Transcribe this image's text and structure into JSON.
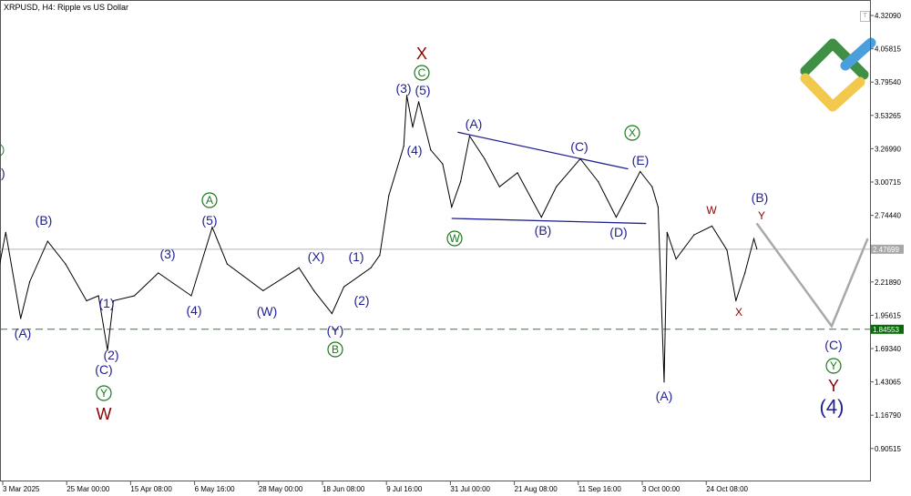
{
  "window": {
    "title": "XRPUSD, H4:  Ripple vs US Dollar"
  },
  "colors": {
    "price": "#000000",
    "wave_navy": "#1f1f8f",
    "wave_red": "#8b0000",
    "wave_green": "#1a7a1a",
    "forecast": "#a8a8a8",
    "current_price_bg": "#a8a8a8",
    "level_bg": "#0b6b0b",
    "trendline": "#1f1f8f"
  },
  "toolbar": {
    "trade_button": "T"
  },
  "chart_data": {
    "type": "line",
    "title": "XRPUSD, H4:  Ripple vs US Dollar",
    "ylim": [
      0.78,
      4.36
    ],
    "y_ticks": [
      "4.32090",
      "4.05815",
      "3.79540",
      "3.53265",
      "3.26990",
      "3.00715",
      "2.74440",
      "2.21890",
      "1.95615",
      "1.69340",
      "1.43065",
      "1.16790",
      "0.90515"
    ],
    "x_ticks": [
      "3 Mar 2025",
      "25 Mar 00:00",
      "15 Apr 08:00",
      "6 May 16:00",
      "28 May 00:00",
      "18 Jun 08:00",
      "9 Jul 16:00",
      "31 Jul 00:00",
      "21 Aug 08:00",
      "11 Sep 16:00",
      "3 Oct 00:00",
      "24 Oct 08:00"
    ],
    "current_price": {
      "label": "2.47699",
      "value": 2.47699
    },
    "level": {
      "label": "1.84553",
      "value": 1.84553,
      "style": "dashed"
    },
    "series": [
      {
        "kind": "price",
        "points": [
          [
            "2025-03-02",
            2.36
          ],
          [
            "2025-03-04",
            2.61
          ],
          [
            "2025-03-09",
            1.93
          ],
          [
            "2025-03-12",
            2.22
          ],
          [
            "2025-03-18",
            2.54
          ],
          [
            "2025-03-24",
            2.36
          ],
          [
            "2025-03-31",
            2.07
          ],
          [
            "2025-04-04",
            2.11
          ],
          [
            "2025-04-07",
            1.68
          ],
          [
            "2025-04-09",
            2.07
          ],
          [
            "2025-04-16",
            2.11
          ],
          [
            "2025-04-24",
            2.29
          ],
          [
            "2025-05-05",
            2.11
          ],
          [
            "2025-05-12",
            2.65
          ],
          [
            "2025-05-17",
            2.36
          ],
          [
            "2025-05-29",
            2.15
          ],
          [
            "2025-06-10",
            2.33
          ],
          [
            "2025-06-15",
            2.15
          ],
          [
            "2025-06-21",
            1.97
          ],
          [
            "2025-06-25",
            2.18
          ],
          [
            "2025-07-04",
            2.33
          ],
          [
            "2025-07-07",
            2.43
          ],
          [
            "2025-07-10",
            2.9
          ],
          [
            "2025-07-15",
            3.29
          ],
          [
            "2025-07-16",
            3.69
          ],
          [
            "2025-07-18",
            3.44
          ],
          [
            "2025-07-20",
            3.64
          ],
          [
            "2025-07-24",
            3.26
          ],
          [
            "2025-07-28",
            3.15
          ],
          [
            "2025-07-31",
            2.81
          ],
          [
            "2025-08-03",
            3.01
          ],
          [
            "2025-08-06",
            3.37
          ],
          [
            "2025-08-11",
            3.19
          ],
          [
            "2025-08-16",
            2.97
          ],
          [
            "2025-08-22",
            3.08
          ],
          [
            "2025-08-30",
            2.73
          ],
          [
            "2025-09-04",
            2.97
          ],
          [
            "2025-09-12",
            3.19
          ],
          [
            "2025-09-18",
            3.01
          ],
          [
            "2025-09-24",
            2.73
          ],
          [
            "2025-10-02",
            3.09
          ],
          [
            "2025-10-06",
            2.97
          ],
          [
            "2025-10-08",
            2.81
          ],
          [
            "2025-10-10",
            1.43
          ],
          [
            "2025-10-11",
            2.61
          ],
          [
            "2025-10-14",
            2.4
          ],
          [
            "2025-10-20",
            2.59
          ],
          [
            "2025-10-26",
            2.66
          ],
          [
            "2025-10-31",
            2.47
          ],
          [
            "2025-11-03",
            2.07
          ],
          [
            "2025-11-06",
            2.29
          ],
          [
            "2025-11-09",
            2.56
          ],
          [
            "2025-11-10",
            2.48
          ]
        ]
      },
      {
        "kind": "forecast",
        "points": [
          [
            "2025-11-10",
            2.68
          ],
          [
            "2025-12-05",
            1.87
          ],
          [
            "2025-12-17",
            2.56
          ]
        ]
      }
    ],
    "trendlines": [
      {
        "from": [
          "2025-08-02",
          3.4
        ],
        "to": [
          "2025-09-28",
          3.11
        ]
      },
      {
        "from": [
          "2025-07-31",
          2.72
        ],
        "to": [
          "2025-10-04",
          2.68
        ]
      }
    ],
    "annotations": [
      {
        "text": "(C)",
        "style": "navy"
      },
      {
        "text": "(A)",
        "style": "navy"
      },
      {
        "text": "(B)",
        "style": "navy"
      },
      {
        "text": "(1)",
        "style": "navy"
      },
      {
        "text": "(2)",
        "style": "navy"
      },
      {
        "text": "(C)",
        "style": "navy"
      },
      {
        "text": "Y",
        "style": "green-circle"
      },
      {
        "text": "W",
        "style": "red"
      },
      {
        "text": "(3)",
        "style": "navy"
      },
      {
        "text": "(4)",
        "style": "navy"
      },
      {
        "text": "A",
        "style": "green-circle"
      },
      {
        "text": "(5)",
        "style": "navy"
      },
      {
        "text": "(W)",
        "style": "navy"
      },
      {
        "text": "(X)",
        "style": "navy"
      },
      {
        "text": "(Y)",
        "style": "navy"
      },
      {
        "text": "B",
        "style": "green-circle"
      },
      {
        "text": "(1)",
        "style": "navy"
      },
      {
        "text": "(2)",
        "style": "navy"
      },
      {
        "text": "(3)",
        "style": "navy"
      },
      {
        "text": "(5)",
        "style": "navy"
      },
      {
        "text": "C",
        "style": "green-circle"
      },
      {
        "text": "X",
        "style": "red"
      },
      {
        "text": "(4)",
        "style": "navy"
      },
      {
        "text": "(A)",
        "style": "navy"
      },
      {
        "text": "W",
        "style": "green-circle"
      },
      {
        "text": "(B)",
        "style": "navy"
      },
      {
        "text": "(C)",
        "style": "navy"
      },
      {
        "text": "X",
        "style": "green-circle"
      },
      {
        "text": "(E)",
        "style": "navy"
      },
      {
        "text": "(D)",
        "style": "navy"
      },
      {
        "text": "(A)",
        "style": "navy"
      },
      {
        "text": "W",
        "style": "red-small"
      },
      {
        "text": "X",
        "style": "red-small"
      },
      {
        "text": "(B)",
        "style": "navy"
      },
      {
        "text": "Y",
        "style": "red-small"
      },
      {
        "text": "(C)",
        "style": "navy"
      },
      {
        "text": "Y",
        "style": "green-circle"
      },
      {
        "text": "Y",
        "style": "red"
      },
      {
        "text": "(4)",
        "style": "navy-large"
      }
    ]
  }
}
